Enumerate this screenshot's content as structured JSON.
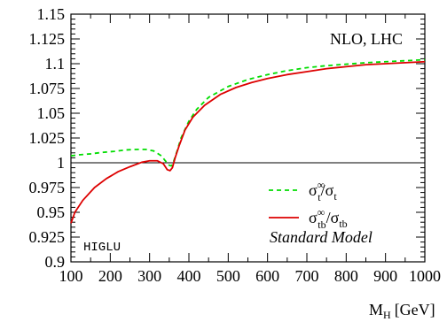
{
  "chart_data": {
    "type": "line",
    "xlabel_main": "M",
    "xlabel_sub": "H",
    "xlabel_unit": "[GeV]",
    "xlim": [
      100,
      1000
    ],
    "ylim": [
      0.9,
      1.15
    ],
    "x_ticks": [
      "100",
      "200",
      "300",
      "400",
      "500",
      "600",
      "700",
      "800",
      "900",
      "1000"
    ],
    "y_ticks": [
      "0.9",
      "0.925",
      "0.95",
      "0.975",
      "1",
      "1.025",
      "1.05",
      "1.075",
      "1.1",
      "1.125",
      "1.15"
    ],
    "reference_line_y": 1,
    "annotations": {
      "top_right": "NLO, LHC",
      "bottom_left": "HIGLU",
      "bottom_right": "Standard Model"
    },
    "legend_position": "bottom-right",
    "series": [
      {
        "name": "σ_t^∞/σ_t",
        "legend_sigma": "σ",
        "legend_sup": "∞",
        "legend_sub_num": "t",
        "legend_slash": "/σ",
        "legend_sub_den": "t",
        "color": "#00dd00",
        "dash": "dashed",
        "x": [
          100,
          120,
          150,
          180,
          210,
          240,
          270,
          290,
          310,
          330,
          340,
          350,
          355,
          360,
          370,
          380,
          400,
          420,
          450,
          500,
          550,
          600,
          650,
          700,
          750,
          800,
          850,
          900,
          950,
          1000
        ],
        "y": [
          1.007,
          1.008,
          1.009,
          1.0105,
          1.0115,
          1.013,
          1.0135,
          1.0135,
          1.012,
          1.007,
          1.002,
          0.9975,
          0.9968,
          1.0,
          1.012,
          1.025,
          1.042,
          1.054,
          1.066,
          1.077,
          1.084,
          1.089,
          1.093,
          1.096,
          1.098,
          1.0995,
          1.101,
          1.102,
          1.103,
          1.104
        ]
      },
      {
        "name": "σ_tb^∞/σ_tb",
        "legend_sigma": "σ",
        "legend_sup": "∞",
        "legend_sub_num": "tb",
        "legend_slash": "/σ",
        "legend_sub_den": "tb",
        "color": "#dd0000",
        "dash": "solid",
        "x": [
          100,
          110,
          130,
          160,
          190,
          220,
          250,
          280,
          300,
          320,
          335,
          345,
          352,
          358,
          365,
          375,
          390,
          410,
          440,
          480,
          520,
          560,
          600,
          650,
          700,
          750,
          800,
          850,
          900,
          950,
          1000
        ],
        "y": [
          0.939,
          0.95,
          0.962,
          0.975,
          0.984,
          0.991,
          0.996,
          1.0005,
          1.002,
          1.002,
          0.999,
          0.993,
          0.992,
          0.995,
          1.005,
          1.017,
          1.033,
          1.046,
          1.058,
          1.069,
          1.076,
          1.081,
          1.085,
          1.089,
          1.092,
          1.095,
          1.097,
          1.099,
          1.1,
          1.101,
          1.102
        ]
      }
    ]
  }
}
